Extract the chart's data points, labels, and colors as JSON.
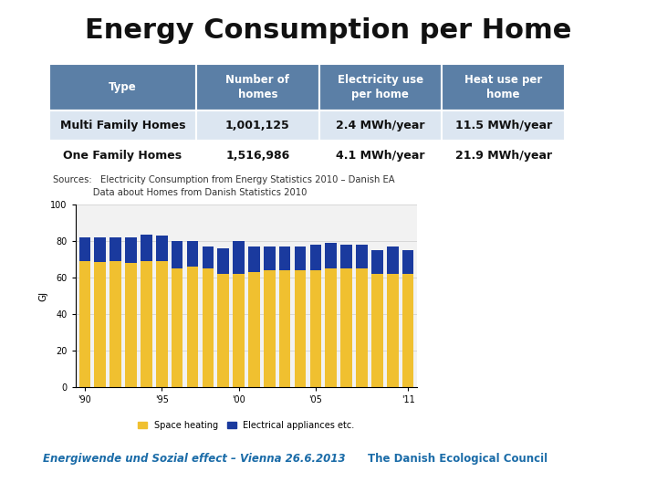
{
  "title": "Energy Consumption per Home",
  "title_fontsize": 22,
  "title_fontweight": "bold",
  "bg_color": "#ffffff",
  "header_color": "#5b7fa6",
  "header_text_color": "#ffffff",
  "row_bg_even": "#dce6f1",
  "row_bg_odd": "#ffffff",
  "table_headers": [
    "Type",
    "Number of\nhomes",
    "Electricity use\nper home",
    "Heat use per\nhome"
  ],
  "table_rows": [
    [
      "Multi Family Homes",
      "1,001,125",
      "2.4 MWh/year",
      "11.5 MWh/year"
    ],
    [
      "One Family Homes",
      "1,516,986",
      "4.1 MWh/year",
      "21.9 MWh/year"
    ]
  ],
  "source_line1": "Sources:   Electricity Consumption from Energy Statistics 2010 – Danish EA",
  "source_line2": "              Data about Homes from Danish Statistics 2010",
  "years": [
    1990,
    1991,
    1992,
    1993,
    1994,
    1995,
    1996,
    1997,
    1998,
    1999,
    2000,
    2001,
    2002,
    2003,
    2004,
    2005,
    2006,
    2007,
    2008,
    2009,
    2010,
    2011
  ],
  "space_heating": [
    69,
    68.5,
    69,
    68,
    69,
    69,
    65,
    66,
    65,
    62,
    62,
    63,
    64,
    64,
    64,
    64,
    65,
    65,
    65,
    62,
    62,
    62
  ],
  "electrical": [
    13,
    13.5,
    13,
    14,
    14.5,
    14,
    15,
    14,
    12,
    14,
    18,
    14,
    13,
    13,
    13,
    14,
    14,
    13,
    13,
    13,
    15,
    13
  ],
  "color_heating": "#f0c030",
  "color_electrical": "#1a3a9e",
  "ylabel": "GJ",
  "ylim": [
    0,
    100
  ],
  "yticks": [
    0,
    20,
    40,
    60,
    80,
    100
  ],
  "xtick_labels": [
    "'90",
    "'95",
    "'00",
    "'05",
    "'11"
  ],
  "xtick_positions": [
    1990,
    1995,
    2000,
    2005,
    2011
  ],
  "legend_heating": "Space heating",
  "legend_electrical": "Electrical appliances etc.",
  "footer_left": "Energiwende und Sozial effect – Vienna 26.6.2013",
  "footer_right": "The Danish Ecological Council",
  "footer_color": "#1b6ca8",
  "separator_color": "#7a9bbf",
  "chart_bg_color": "#f2f2f2"
}
